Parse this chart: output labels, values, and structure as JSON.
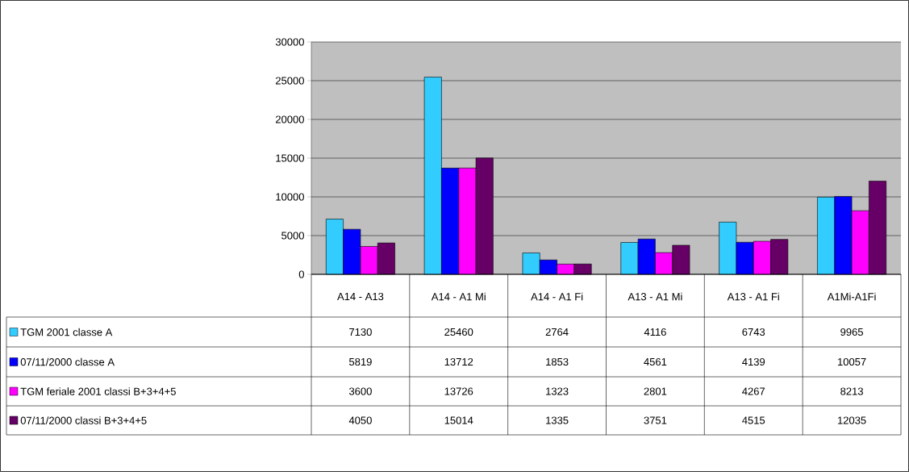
{
  "chart_data": {
    "type": "bar",
    "categories": [
      "A14 - A13",
      "A14 - A1 Mi",
      "A14 - A1 Fi",
      "A13 - A1 Mi",
      "A13 - A1 Fi",
      "A1Mi-A1Fi"
    ],
    "series": [
      {
        "name": "TGM 2001 classe A",
        "color": "#33CCFF",
        "values": [
          7130,
          25460,
          2764,
          4116,
          6743,
          9965
        ]
      },
      {
        "name": "07/11/2000 classe A",
        "color": "#0000FF",
        "values": [
          5819,
          13712,
          1853,
          4561,
          4139,
          10057
        ]
      },
      {
        "name": "TGM feriale 2001 classi B+3+4+5",
        "color": "#FF00FF",
        "values": [
          3600,
          13726,
          1323,
          2801,
          4267,
          8213
        ]
      },
      {
        "name": "07/11/2000 classi B+3+4+5",
        "color": "#660066",
        "values": [
          4050,
          15014,
          1335,
          3751,
          4515,
          12035
        ]
      }
    ],
    "ylim": [
      0,
      30000
    ],
    "yticks": [
      0,
      5000,
      10000,
      15000,
      20000,
      25000,
      30000
    ],
    "grid": "y",
    "legend": "bottom",
    "data_labels": true
  }
}
